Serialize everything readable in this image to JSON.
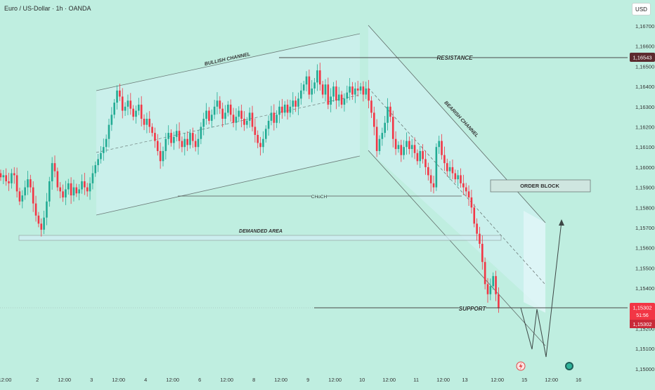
{
  "header": {
    "symbol_title": "Euro / US-Dollar · 1h · OANDA",
    "currency_label": "USD"
  },
  "colors": {
    "background": "#bfeee0",
    "up": "#22ab94",
    "down": "#f23645",
    "annotation": "#4a4a4a",
    "channel_fill": "#d6f2f8",
    "label_price_bg": "#f23645",
    "resistance_label_bg": "#5d2b2f"
  },
  "chart_data": {
    "type": "candlestick",
    "symbol": "EURUSD",
    "timeframe": "1h",
    "ylim": [
      1.1497,
      1.1683
    ],
    "y_ticks": [
      1.167,
      1.166,
      1.165,
      1.164,
      1.163,
      1.162,
      1.161,
      1.16,
      1.159,
      1.158,
      1.157,
      1.156,
      1.155,
      1.154,
      1.153,
      1.152,
      1.151,
      1.15
    ],
    "y_tick_labels": [
      "1,16700",
      "1,16600",
      "1,16500",
      "1,16400",
      "1,16300",
      "1,16200",
      "1,16100",
      "1,16000",
      "1,15900",
      "1,15800",
      "1,15700",
      "1,15600",
      "1,15500",
      "1,15400",
      "1,15300",
      "1,15200",
      "1,15100",
      "1,15000"
    ],
    "x_ticks": [
      {
        "label": "12:00",
        "bar": 0
      },
      {
        "label": "2",
        "bar": 12
      },
      {
        "label": "12:00",
        "bar": 22
      },
      {
        "label": "3",
        "bar": 32
      },
      {
        "label": "12:00",
        "bar": 42
      },
      {
        "label": "4",
        "bar": 52
      },
      {
        "label": "12:00",
        "bar": 62
      },
      {
        "label": "6",
        "bar": 72
      },
      {
        "label": "12:00",
        "bar": 82
      },
      {
        "label": "8",
        "bar": 92
      },
      {
        "label": "12:00",
        "bar": 102
      },
      {
        "label": "9",
        "bar": 112
      },
      {
        "label": "12:00",
        "bar": 122
      },
      {
        "label": "10",
        "bar": 132
      },
      {
        "label": "12:00",
        "bar": 142
      },
      {
        "label": "11",
        "bar": 152
      },
      {
        "label": "12:00",
        "bar": 162
      },
      {
        "label": "13",
        "bar": 170
      },
      {
        "label": "12:00",
        "bar": 182
      },
      {
        "label": "15",
        "bar": 192
      },
      {
        "label": "12:00",
        "bar": 202
      },
      {
        "label": "16",
        "bar": 212
      }
    ],
    "closes": [
      1.1595,
      1.1596,
      1.1593,
      1.1592,
      1.1597,
      1.1596,
      1.1588,
      1.1583,
      1.1586,
      1.159,
      1.1594,
      1.159,
      1.1582,
      1.1576,
      1.1572,
      1.1569,
      1.1575,
      1.1583,
      1.1593,
      1.1602,
      1.1598,
      1.159,
      1.1588,
      1.1585,
      1.1589,
      1.1592,
      1.1586,
      1.159,
      1.1587,
      1.1589,
      1.1593,
      1.159,
      1.1588,
      1.1592,
      1.1597,
      1.1601,
      1.1604,
      1.1607,
      1.161,
      1.1614,
      1.1621,
      1.1626,
      1.1632,
      1.1638,
      1.1635,
      1.1628,
      1.163,
      1.1633,
      1.1629,
      1.1625,
      1.1628,
      1.1631,
      1.1624,
      1.1621,
      1.1624,
      1.162,
      1.1617,
      1.1613,
      1.1608,
      1.1603,
      1.1608,
      1.1614,
      1.1617,
      1.1612,
      1.1615,
      1.1618,
      1.1613,
      1.161,
      1.1614,
      1.1611,
      1.1617,
      1.1613,
      1.161,
      1.1614,
      1.162,
      1.1624,
      1.1628,
      1.1623,
      1.1626,
      1.163,
      1.1633,
      1.1629,
      1.1624,
      1.1627,
      1.1631,
      1.1626,
      1.1622,
      1.1625,
      1.1628,
      1.1624,
      1.1621,
      1.1623,
      1.1627,
      1.162,
      1.1616,
      1.1612,
      1.161,
      1.1614,
      1.1619,
      1.1623,
      1.1627,
      1.1622,
      1.1626,
      1.163,
      1.1627,
      1.1631,
      1.1627,
      1.163,
      1.1633,
      1.163,
      1.1634,
      1.1638,
      1.1641,
      1.1645,
      1.1636,
      1.1639,
      1.1642,
      1.1648,
      1.1641,
      1.1636,
      1.1641,
      1.1631,
      1.1635,
      1.164,
      1.1633,
      1.1636,
      1.1631,
      1.1634,
      1.1637,
      1.164,
      1.1636,
      1.1639,
      1.1638,
      1.164,
      1.1636,
      1.1639,
      1.1633,
      1.1627,
      1.162,
      1.1608,
      1.1614,
      1.1617,
      1.1622,
      1.163,
      1.1625,
      1.1614,
      1.1609,
      1.1611,
      1.1606,
      1.161,
      1.1613,
      1.1609,
      1.1611,
      1.1607,
      1.1603,
      1.1608,
      1.1604,
      1.16,
      1.1596,
      1.1592,
      1.159,
      1.161,
      1.1613,
      1.1606,
      1.1602,
      1.1598,
      1.16,
      1.1597,
      1.1594,
      1.1596,
      1.1592,
      1.159,
      1.1588,
      1.1585,
      1.158,
      1.1572,
      1.1567,
      1.1562,
      1.1553,
      1.1542,
      1.1537,
      1.1541,
      1.1546,
      1.1537,
      1.153
    ]
  },
  "annotations": {
    "bullish_channel": "BULLISH CHANNEL",
    "resistance": "RESISTANCE",
    "bearish_channel": "BEARISH CHANNEL",
    "order_block": "ORDER BLOCK",
    "choch": "CHoCH",
    "demanded_area": "DEMANDED AREA",
    "support": "SUPPORT"
  },
  "price_labels": {
    "resistance": "1,16543",
    "support": "1,15302",
    "countdown": "51:56",
    "last": "1,15302"
  }
}
